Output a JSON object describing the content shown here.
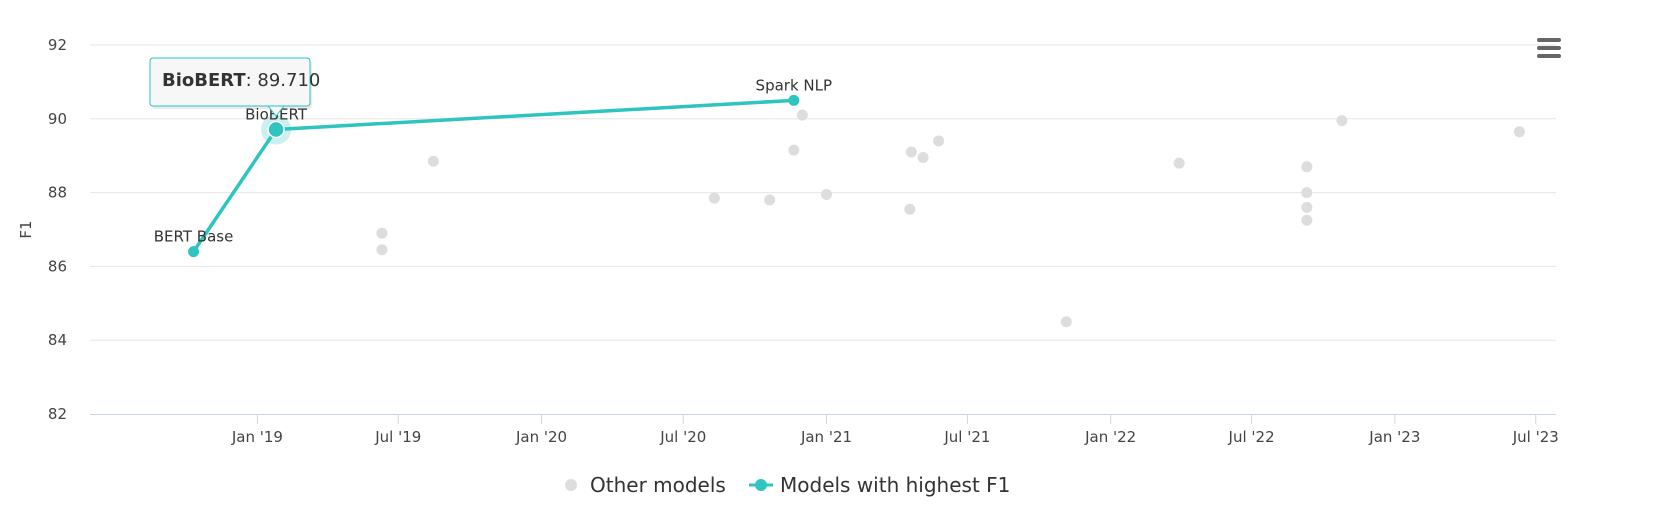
{
  "chart_data": {
    "type": "scatter",
    "ylabel": "F1",
    "xlabel": "",
    "ylim": [
      82,
      92
    ],
    "xlim": [
      "2018-05-31",
      "2023-07-27"
    ],
    "y_ticks": [
      82,
      84,
      86,
      88,
      90,
      92
    ],
    "x_ticks": [
      {
        "date": "2019-01-01",
        "label": "Jan '19"
      },
      {
        "date": "2019-07-01",
        "label": "Jul '19"
      },
      {
        "date": "2020-01-01",
        "label": "Jan '20"
      },
      {
        "date": "2020-07-01",
        "label": "Jul '20"
      },
      {
        "date": "2021-01-01",
        "label": "Jan '21"
      },
      {
        "date": "2021-07-01",
        "label": "Jul '21"
      },
      {
        "date": "2022-01-01",
        "label": "Jan '22"
      },
      {
        "date": "2022-07-01",
        "label": "Jul '22"
      },
      {
        "date": "2023-01-01",
        "label": "Jan '23"
      },
      {
        "date": "2023-07-01",
        "label": "Jul '23"
      }
    ],
    "grid": true,
    "legend_position": "bottom-center",
    "series": [
      {
        "name": "Other models",
        "color": "#dddddd",
        "points": [
          {
            "x": "2019-06-10",
            "y": 86.9
          },
          {
            "x": "2019-06-10",
            "y": 86.45
          },
          {
            "x": "2019-08-15",
            "y": 88.85
          },
          {
            "x": "2020-08-10",
            "y": 87.85
          },
          {
            "x": "2020-10-20",
            "y": 87.8
          },
          {
            "x": "2020-11-20",
            "y": 89.15
          },
          {
            "x": "2020-12-01",
            "y": 90.1
          },
          {
            "x": "2021-01-01",
            "y": 87.95
          },
          {
            "x": "2021-04-20",
            "y": 89.1
          },
          {
            "x": "2021-05-05",
            "y": 88.95
          },
          {
            "x": "2021-05-25",
            "y": 89.4
          },
          {
            "x": "2021-04-18",
            "y": 87.55
          },
          {
            "x": "2021-11-05",
            "y": 84.5
          },
          {
            "x": "2022-03-30",
            "y": 88.8
          },
          {
            "x": "2022-09-10",
            "y": 88.7
          },
          {
            "x": "2022-09-10",
            "y": 88.0
          },
          {
            "x": "2022-09-10",
            "y": 87.6
          },
          {
            "x": "2022-09-10",
            "y": 87.25
          },
          {
            "x": "2022-10-25",
            "y": 89.95
          },
          {
            "x": "2023-06-10",
            "y": 89.65
          }
        ]
      },
      {
        "name": "Models with highest F1",
        "color": "#2ec4c0",
        "points": [
          {
            "x": "2018-10-11",
            "y": 86.4,
            "label": "BERT Base"
          },
          {
            "x": "2019-01-25",
            "y": 89.71,
            "label": "BioBERT"
          },
          {
            "x": "2020-11-20",
            "y": 90.5,
            "label": "Spark NLP"
          }
        ]
      }
    ],
    "tooltip": {
      "name": "BioBERT",
      "separator": ": ",
      "value": "89.710"
    }
  }
}
